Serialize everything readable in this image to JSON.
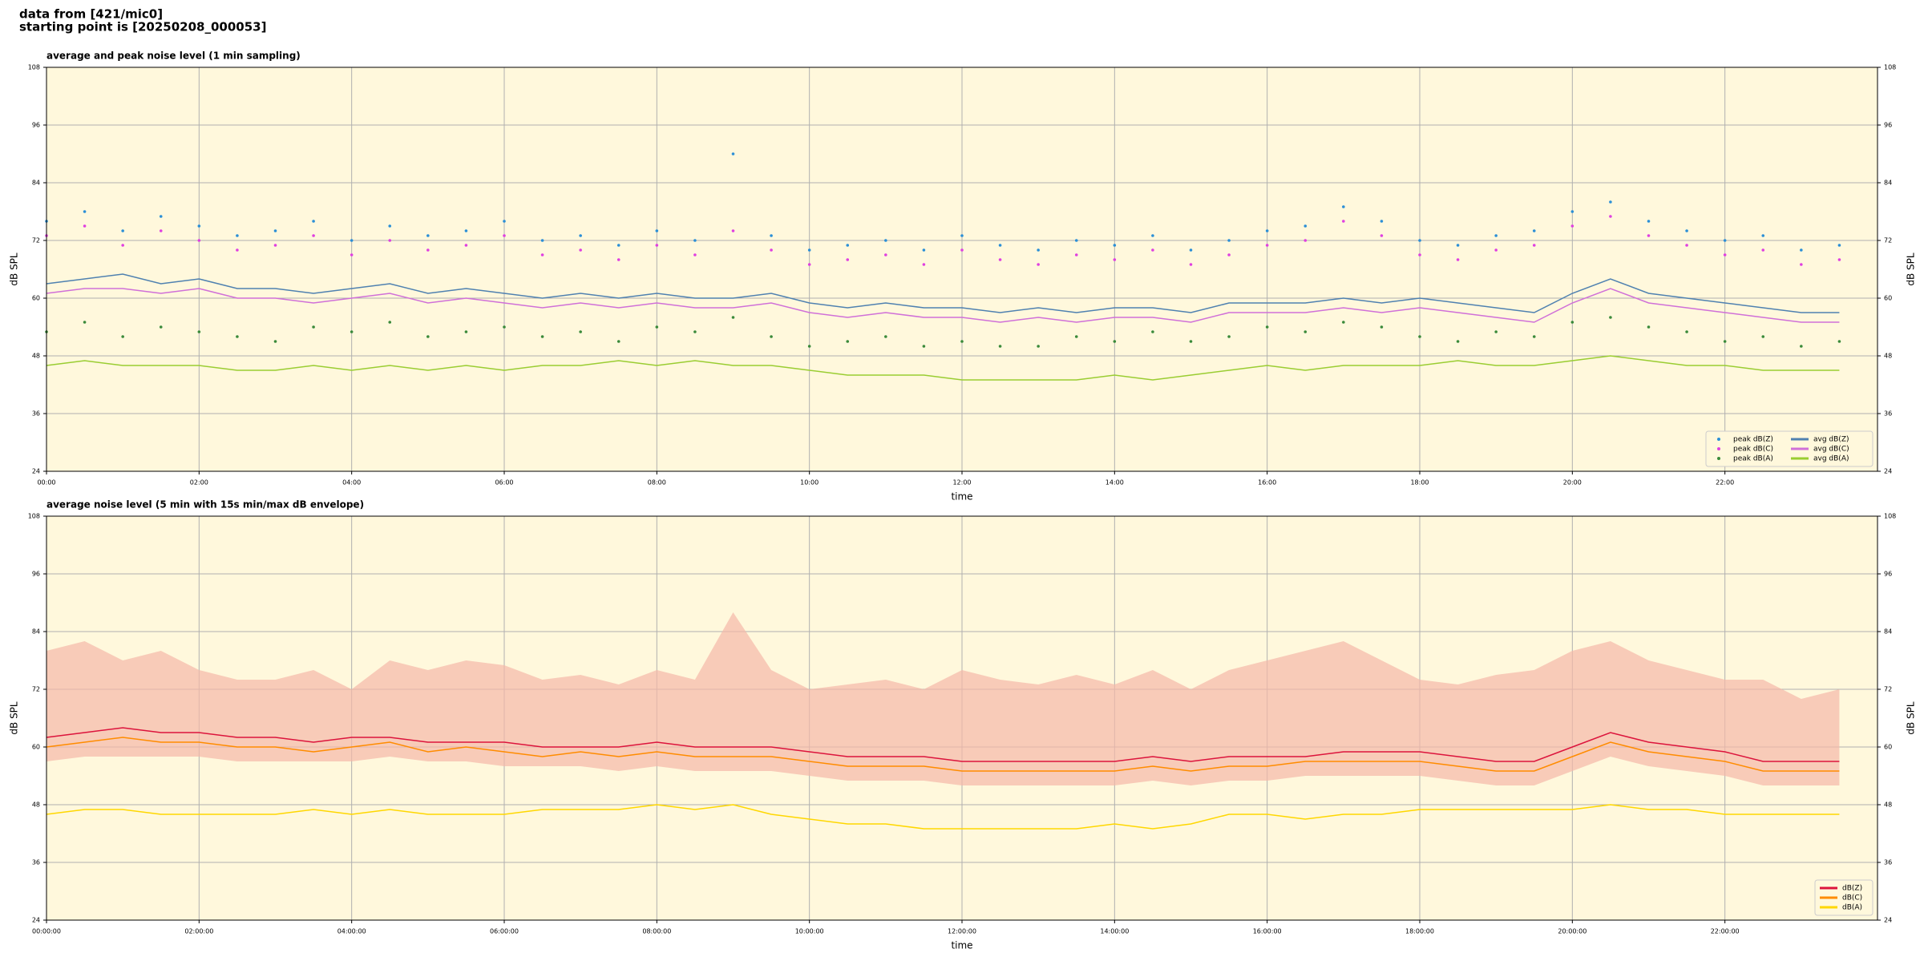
{
  "header": {
    "line1": "data from [421/mic0]",
    "line2": "starting point is [20250208_000053]"
  },
  "chart_data": [
    {
      "type": "line",
      "title": "average and peak noise level (1 min sampling)",
      "xlabel": "time",
      "ylabel": "dB SPL",
      "xlim": [
        0,
        24
      ],
      "ylim": [
        24,
        108
      ],
      "yticks": [
        24,
        36,
        48,
        60,
        72,
        84,
        96,
        108
      ],
      "xticks": [
        {
          "value": 0,
          "label": "00:00"
        },
        {
          "value": 2,
          "label": "02:00"
        },
        {
          "value": 4,
          "label": "04:00"
        },
        {
          "value": 6,
          "label": "06:00"
        },
        {
          "value": 8,
          "label": "08:00"
        },
        {
          "value": 10,
          "label": "10:00"
        },
        {
          "value": 12,
          "label": "12:00"
        },
        {
          "value": 14,
          "label": "14:00"
        },
        {
          "value": 16,
          "label": "16:00"
        },
        {
          "value": 18,
          "label": "18:00"
        },
        {
          "value": 20,
          "label": "20:00"
        },
        {
          "value": 22,
          "label": "22:00"
        }
      ],
      "grid": true,
      "legend": "lower right",
      "legend_columns": 2,
      "x": [
        0,
        0.5,
        1,
        1.5,
        2,
        2.5,
        3,
        3.5,
        4,
        4.5,
        5,
        5.5,
        6,
        6.5,
        7,
        7.5,
        8,
        8.5,
        9,
        9.5,
        10,
        10.5,
        11,
        11.5,
        12,
        12.5,
        13,
        13.5,
        14,
        14.5,
        15,
        15.5,
        16,
        16.5,
        17,
        17.5,
        18,
        18.5,
        19,
        19.5,
        20,
        20.5,
        21,
        21.5,
        22,
        22.5,
        23,
        23.5
      ],
      "series": [
        {
          "name": "peak dB(Z)",
          "mode": "markers",
          "color": "#2b8fd6",
          "values": [
            76,
            78,
            74,
            77,
            75,
            73,
            74,
            76,
            72,
            75,
            73,
            74,
            76,
            72,
            73,
            71,
            74,
            72,
            90,
            73,
            70,
            71,
            72,
            70,
            73,
            71,
            70,
            72,
            71,
            73,
            70,
            72,
            74,
            75,
            79,
            76,
            72,
            71,
            73,
            74,
            78,
            80,
            76,
            74,
            72,
            73,
            70,
            71
          ]
        },
        {
          "name": "peak dB(C)",
          "mode": "markers",
          "color": "#e040e0",
          "values": [
            73,
            75,
            71,
            74,
            72,
            70,
            71,
            73,
            69,
            72,
            70,
            71,
            73,
            69,
            70,
            68,
            71,
            69,
            74,
            70,
            67,
            68,
            69,
            67,
            70,
            68,
            67,
            69,
            68,
            70,
            67,
            69,
            71,
            72,
            76,
            73,
            69,
            68,
            70,
            71,
            75,
            77,
            73,
            71,
            69,
            70,
            67,
            68
          ]
        },
        {
          "name": "peak dB(A)",
          "mode": "markers",
          "color": "#3a8a3a",
          "values": [
            53,
            55,
            52,
            54,
            53,
            52,
            51,
            54,
            53,
            55,
            52,
            53,
            54,
            52,
            53,
            51,
            54,
            53,
            56,
            52,
            50,
            51,
            52,
            50,
            51,
            50,
            50,
            52,
            51,
            53,
            51,
            52,
            54,
            53,
            55,
            54,
            52,
            51,
            53,
            52,
            55,
            56,
            54,
            53,
            51,
            52,
            50,
            51
          ]
        },
        {
          "name": "avg dB(Z)",
          "mode": "line",
          "color": "#4f81b0",
          "values": [
            63,
            64,
            65,
            63,
            64,
            62,
            62,
            61,
            62,
            63,
            61,
            62,
            61,
            60,
            61,
            60,
            61,
            60,
            60,
            61,
            59,
            58,
            59,
            58,
            58,
            57,
            58,
            57,
            58,
            58,
            57,
            59,
            59,
            59,
            60,
            59,
            60,
            59,
            58,
            57,
            61,
            64,
            61,
            60,
            59,
            58,
            57,
            57
          ]
        },
        {
          "name": "avg dB(C)",
          "mode": "line",
          "color": "#d070d8",
          "values": [
            61,
            62,
            62,
            61,
            62,
            60,
            60,
            59,
            60,
            61,
            59,
            60,
            59,
            58,
            59,
            58,
            59,
            58,
            58,
            59,
            57,
            56,
            57,
            56,
            56,
            55,
            56,
            55,
            56,
            56,
            55,
            57,
            57,
            57,
            58,
            57,
            58,
            57,
            56,
            55,
            59,
            62,
            59,
            58,
            57,
            56,
            55,
            55
          ]
        },
        {
          "name": "avg dB(A)",
          "mode": "line",
          "color": "#9acd32",
          "values": [
            46,
            47,
            46,
            46,
            46,
            45,
            45,
            46,
            45,
            46,
            45,
            46,
            45,
            46,
            46,
            47,
            46,
            47,
            46,
            46,
            45,
            44,
            44,
            44,
            43,
            43,
            43,
            43,
            44,
            43,
            44,
            45,
            46,
            45,
            46,
            46,
            46,
            47,
            46,
            46,
            47,
            48,
            47,
            46,
            46,
            45,
            45,
            45
          ]
        }
      ]
    },
    {
      "type": "line",
      "title": "average noise level (5 min with 15s min/max dB envelope)",
      "xlabel": "time",
      "ylabel": "dB SPL",
      "xlim": [
        0,
        24
      ],
      "ylim": [
        24,
        108
      ],
      "yticks": [
        24,
        36,
        48,
        60,
        72,
        84,
        96,
        108
      ],
      "xticks": [
        {
          "value": 0,
          "label": "00:00:00"
        },
        {
          "value": 2,
          "label": "02:00:00"
        },
        {
          "value": 4,
          "label": "04:00:00"
        },
        {
          "value": 6,
          "label": "06:00:00"
        },
        {
          "value": 8,
          "label": "08:00:00"
        },
        {
          "value": 10,
          "label": "10:00:00"
        },
        {
          "value": 12,
          "label": "12:00:00"
        },
        {
          "value": 14,
          "label": "14:00:00"
        },
        {
          "value": 16,
          "label": "16:00:00"
        },
        {
          "value": 18,
          "label": "18:00:00"
        },
        {
          "value": 20,
          "label": "20:00:00"
        },
        {
          "value": 22,
          "label": "22:00:00"
        }
      ],
      "grid": true,
      "legend": "lower right",
      "legend_columns": 1,
      "x": [
        0,
        0.5,
        1,
        1.5,
        2,
        2.5,
        3,
        3.5,
        4,
        4.5,
        5,
        5.5,
        6,
        6.5,
        7,
        7.5,
        8,
        8.5,
        9,
        9.5,
        10,
        10.5,
        11,
        11.5,
        12,
        12.5,
        13,
        13.5,
        14,
        14.5,
        15,
        15.5,
        16,
        16.5,
        17,
        17.5,
        18,
        18.5,
        19,
        19.5,
        20,
        20.5,
        21,
        21.5,
        22,
        22.5,
        23,
        23.5
      ],
      "envelope": {
        "color": "#f5b8a8",
        "min": [
          57,
          58,
          58,
          58,
          58,
          57,
          57,
          57,
          57,
          58,
          57,
          57,
          56,
          56,
          56,
          55,
          56,
          55,
          55,
          55,
          54,
          53,
          53,
          53,
          52,
          52,
          52,
          52,
          52,
          53,
          52,
          53,
          53,
          54,
          54,
          54,
          54,
          53,
          52,
          52,
          55,
          58,
          56,
          55,
          54,
          52,
          52,
          52
        ],
        "max": [
          80,
          82,
          78,
          80,
          76,
          74,
          74,
          76,
          72,
          78,
          76,
          78,
          77,
          74,
          75,
          73,
          76,
          74,
          88,
          76,
          72,
          73,
          74,
          72,
          76,
          74,
          73,
          75,
          73,
          76,
          72,
          76,
          78,
          80,
          82,
          78,
          74,
          73,
          75,
          76,
          80,
          82,
          78,
          76,
          74,
          74,
          70,
          72
        ]
      },
      "series": [
        {
          "name": "dB(Z)",
          "mode": "line",
          "color": "#dc143c",
          "values": [
            62,
            63,
            64,
            63,
            63,
            62,
            62,
            61,
            62,
            62,
            61,
            61,
            61,
            60,
            60,
            60,
            61,
            60,
            60,
            60,
            59,
            58,
            58,
            58,
            57,
            57,
            57,
            57,
            57,
            58,
            57,
            58,
            58,
            58,
            59,
            59,
            59,
            58,
            57,
            57,
            60,
            63,
            61,
            60,
            59,
            57,
            57,
            57
          ]
        },
        {
          "name": "dB(C)",
          "mode": "line",
          "color": "#ff8c00",
          "values": [
            60,
            61,
            62,
            61,
            61,
            60,
            60,
            59,
            60,
            61,
            59,
            60,
            59,
            58,
            59,
            58,
            59,
            58,
            58,
            58,
            57,
            56,
            56,
            56,
            55,
            55,
            55,
            55,
            55,
            56,
            55,
            56,
            56,
            57,
            57,
            57,
            57,
            56,
            55,
            55,
            58,
            61,
            59,
            58,
            57,
            55,
            55,
            55
          ]
        },
        {
          "name": "dB(A)",
          "mode": "line",
          "color": "#ffd700",
          "values": [
            46,
            47,
            47,
            46,
            46,
            46,
            46,
            47,
            46,
            47,
            46,
            46,
            46,
            47,
            47,
            47,
            48,
            47,
            48,
            46,
            45,
            44,
            44,
            43,
            43,
            43,
            43,
            43,
            44,
            43,
            44,
            46,
            46,
            45,
            46,
            46,
            47,
            47,
            47,
            47,
            47,
            48,
            47,
            47,
            46,
            46,
            46,
            46
          ]
        }
      ]
    }
  ]
}
